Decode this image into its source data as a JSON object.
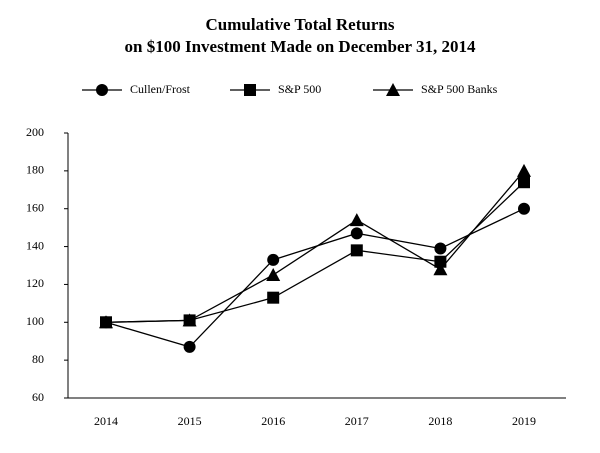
{
  "chart_data": {
    "type": "line",
    "title": "Cumulative Total Returns",
    "subtitle": "on $100 Investment Made on December 31, 2014",
    "categories": [
      "2014",
      "2015",
      "2016",
      "2017",
      "2018",
      "2019"
    ],
    "series": [
      {
        "name": "Cullen/Frost",
        "color": "#000000",
        "marker": "circle",
        "values": [
          100,
          87,
          133,
          147,
          139,
          160
        ]
      },
      {
        "name": "S&P 500",
        "color": "#000000",
        "marker": "square",
        "values": [
          100,
          101,
          113,
          138,
          132,
          174
        ]
      },
      {
        "name": "S&P 500 Banks",
        "color": "#000000",
        "marker": "triangle",
        "values": [
          100,
          101,
          125,
          154,
          128,
          180
        ]
      }
    ],
    "ylim": [
      60,
      200
    ],
    "yticks": [
      60,
      80,
      100,
      120,
      140,
      160,
      180,
      200
    ],
    "grid": false,
    "legend": "top"
  }
}
